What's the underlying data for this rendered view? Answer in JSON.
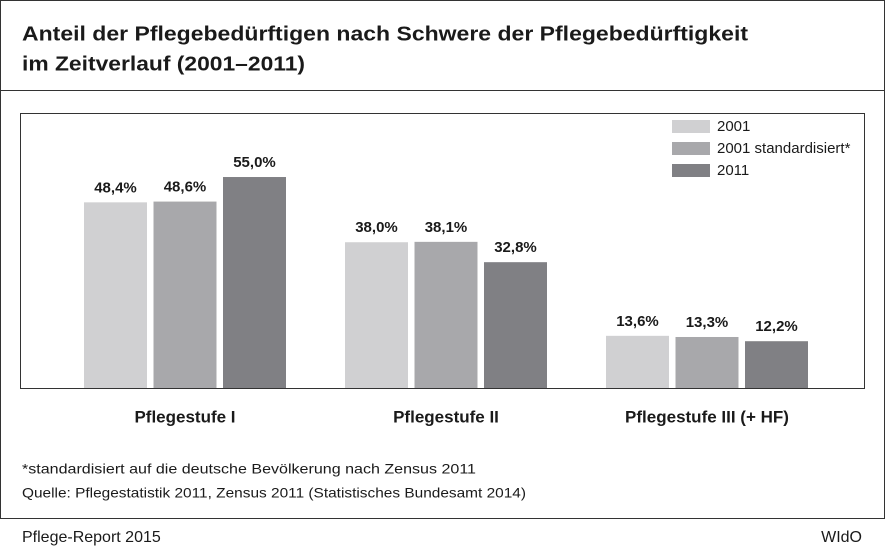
{
  "chart_data": {
    "type": "bar",
    "title": [
      "Anteil der Pflegebedürftigen nach Schwere der Pflegebedürftigkeit",
      "im Zeitverlauf (2001–2011)"
    ],
    "categories": [
      "Pflegestufe I",
      "Pflegestufe II",
      "Pflegestufe III (+ HF)"
    ],
    "series": [
      {
        "name": "2001",
        "color": "#d0d0d2",
        "values": [
          48.4,
          38.0,
          13.6
        ],
        "value_labels": [
          "48,4%",
          "38,0%",
          "13,6%"
        ]
      },
      {
        "name": "2001 standardisiert*",
        "color": "#a8a8ab",
        "values": [
          48.6,
          38.1,
          13.3
        ],
        "value_labels": [
          "48,6%",
          "38,1%",
          "13,3%"
        ]
      },
      {
        "name": "2011",
        "color": "#808084",
        "values": [
          55.0,
          32.8,
          12.2
        ],
        "value_labels": [
          "55,0%",
          "32,8%",
          "12,2%"
        ]
      }
    ],
    "legend": "top-right",
    "footnote": "*standardisiert auf die deutsche Bevölkerung nach Zensus 2011",
    "source": "Quelle: Pflegestatistik 2011,  Zensus 2011 (Statistisches Bundesamt 2014)",
    "report": "Pflege-Report 2015",
    "publisher": "WIdO"
  }
}
